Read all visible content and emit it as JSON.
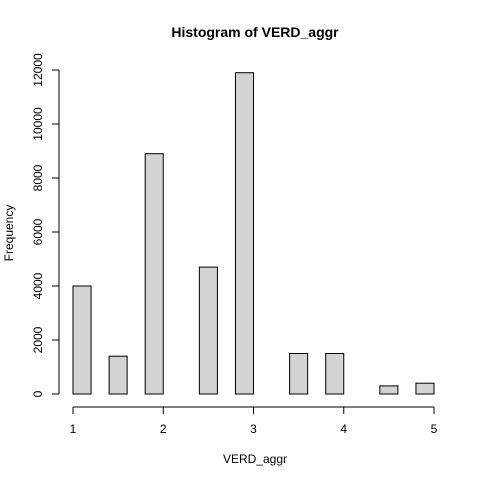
{
  "chart_data": {
    "type": "bar",
    "title": "Histogram of VERD_aggr",
    "xlabel": "VERD_aggr",
    "ylabel": "Frequency",
    "xlim": [
      1,
      5
    ],
    "ylim": [
      0,
      12000
    ],
    "x_ticks": [
      1,
      2,
      3,
      4,
      5
    ],
    "y_ticks": [
      0,
      2000,
      4000,
      6000,
      8000,
      10000,
      12000
    ],
    "bins": [
      {
        "from": 1.0,
        "to": 1.2,
        "value": 4000
      },
      {
        "from": 1.2,
        "to": 1.4,
        "value": 0
      },
      {
        "from": 1.4,
        "to": 1.6,
        "value": 1400
      },
      {
        "from": 1.6,
        "to": 1.8,
        "value": 0
      },
      {
        "from": 1.8,
        "to": 2.0,
        "value": 8900
      },
      {
        "from": 2.0,
        "to": 2.2,
        "value": 0
      },
      {
        "from": 2.2,
        "to": 2.4,
        "value": 0
      },
      {
        "from": 2.4,
        "to": 2.6,
        "value": 4700
      },
      {
        "from": 2.6,
        "to": 2.8,
        "value": 0
      },
      {
        "from": 2.8,
        "to": 3.0,
        "value": 11900
      },
      {
        "from": 3.0,
        "to": 3.2,
        "value": 0
      },
      {
        "from": 3.2,
        "to": 3.4,
        "value": 0
      },
      {
        "from": 3.4,
        "to": 3.6,
        "value": 1500
      },
      {
        "from": 3.6,
        "to": 3.8,
        "value": 0
      },
      {
        "from": 3.8,
        "to": 4.0,
        "value": 1500
      },
      {
        "from": 4.0,
        "to": 4.2,
        "value": 0
      },
      {
        "from": 4.2,
        "to": 4.4,
        "value": 0
      },
      {
        "from": 4.4,
        "to": 4.6,
        "value": 300
      },
      {
        "from": 4.6,
        "to": 4.8,
        "value": 0
      },
      {
        "from": 4.8,
        "to": 5.0,
        "value": 400
      }
    ],
    "bar_color": "#d3d3d3",
    "edge_color": "#000000",
    "grid": false
  }
}
